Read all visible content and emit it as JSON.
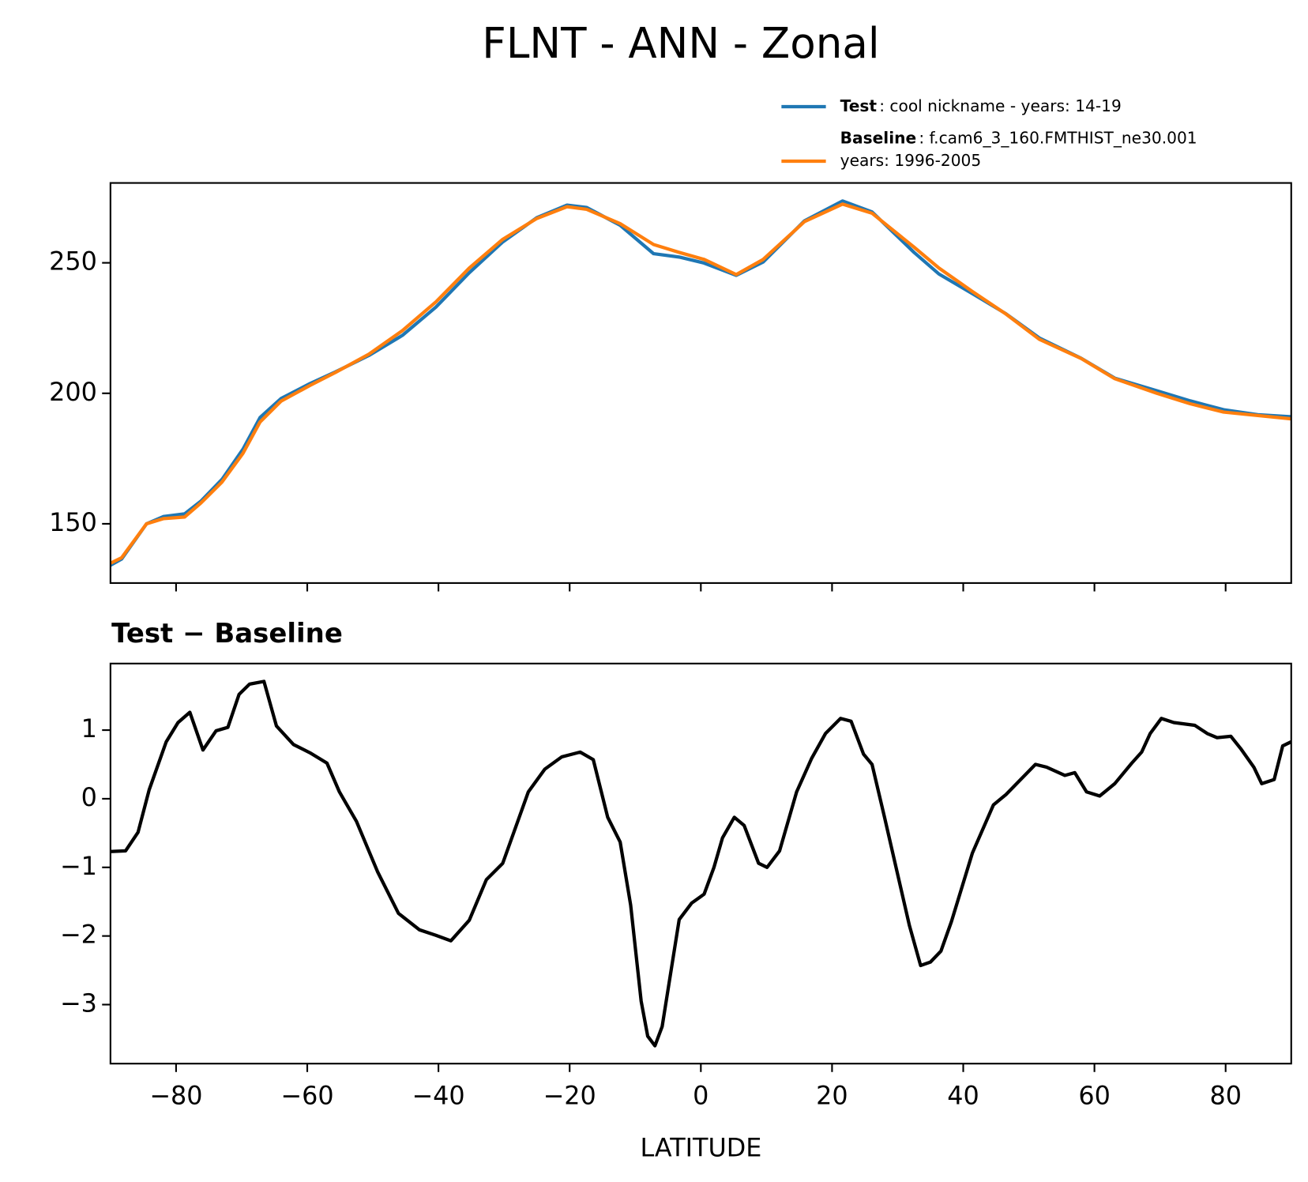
{
  "chart_data": [
    {
      "type": "line",
      "title": "FLNT - ANN - Zonal",
      "legend": "upper right",
      "x": [
        -90,
        -88.3,
        -84.5,
        -81.9,
        -78.7,
        -76.2,
        -73,
        -69.8,
        -67.2,
        -64,
        -59.6,
        -55.7,
        -50.6,
        -45.5,
        -40.4,
        -35.3,
        -30.2,
        -25,
        -20.4,
        -17.4,
        -12.3,
        -7.2,
        -3.3,
        0.5,
        5.4,
        9.5,
        15.8,
        21.6,
        26.1,
        32.5,
        36.3,
        41.4,
        46.5,
        51.6,
        58,
        63.1,
        69.5,
        74.6,
        79.7,
        84.9,
        90
      ],
      "series": [
        {
          "name": "Test",
          "detail": [
            ": cool nickname - years: 14-19"
          ],
          "color": "#1f77b4",
          "values": [
            134.1,
            136.5,
            150,
            152.8,
            153.8,
            158.7,
            167,
            178.6,
            190.7,
            198,
            203.7,
            208.2,
            214.5,
            222.2,
            233,
            246.2,
            258,
            267.3,
            272.1,
            271.2,
            264.4,
            253.5,
            252.2,
            249.9,
            245.2,
            250.3,
            266.1,
            273.7,
            269.5,
            254,
            245.7,
            238.2,
            230.5,
            221.2,
            213.4,
            205.8,
            201,
            197.1,
            193.7,
            191.8,
            191
          ]
        },
        {
          "name": "Baseline",
          "detail": [
            ": f.cam6_3_160.FMTHIST_ne30.001",
            "years: 1996-2005"
          ],
          "color": "#ff7f0e",
          "values": [
            134.9,
            137,
            150,
            152,
            152.6,
            158,
            166,
            177,
            189,
            197,
            203,
            208,
            215,
            224,
            235,
            248,
            259,
            267,
            271.5,
            270.5,
            265,
            257,
            254,
            251.3,
            245.5,
            251.3,
            265.8,
            272.5,
            269,
            256,
            248,
            239,
            230.4,
            220.7,
            213.3,
            205.6,
            200,
            196,
            192.8,
            191.5,
            190.2
          ]
        }
      ],
      "xlim": [
        -90,
        90
      ],
      "xticks": [
        -80,
        -60,
        -40,
        -20,
        0,
        20,
        40,
        60,
        80
      ],
      "ylim": [
        127.3,
        280.6
      ],
      "yticks": [
        150,
        200,
        250
      ]
    },
    {
      "type": "line",
      "title": "Test − Baseline",
      "xlabel": "LATITUDE",
      "x": [
        -90,
        -87.7,
        -85.8,
        -84.1,
        -81.5,
        -79.7,
        -77.9,
        -75.9,
        -73.9,
        -72.1,
        -70.4,
        -68.8,
        -66.6,
        -64.7,
        -62.1,
        -59.6,
        -57,
        -55.1,
        -52.5,
        -49.3,
        -46.1,
        -42.9,
        -40.4,
        -38.1,
        -35.3,
        -32.7,
        -30.2,
        -26.3,
        -23.8,
        -21.2,
        -18.4,
        -16.4,
        -14.2,
        -12.3,
        -10.7,
        -9.1,
        -8.1,
        -7,
        -5.9,
        -3.3,
        -1.4,
        0.5,
        2,
        3.3,
        5.1,
        6.6,
        8.8,
        10.1,
        12,
        14.6,
        16.9,
        19,
        21.3,
        22.9,
        24.8,
        26.1,
        28,
        29.9,
        31.8,
        33.5,
        35,
        36.6,
        38.2,
        41.4,
        44.6,
        46.5,
        51,
        52.7,
        55.5,
        57,
        58.8,
        60.8,
        63.1,
        65.7,
        67.2,
        68.5,
        70.2,
        72.1,
        75.3,
        77.2,
        78.7,
        80.8,
        82.3,
        84.3,
        85.5,
        87.4,
        88.7,
        90
      ],
      "series": [
        {
          "color": "#000000",
          "values": [
            -0.77,
            -0.76,
            -0.49,
            0.13,
            0.83,
            1.11,
            1.26,
            0.71,
            0.99,
            1.04,
            1.52,
            1.67,
            1.71,
            1.06,
            0.79,
            0.67,
            0.52,
            0.1,
            -0.33,
            -1.06,
            -1.67,
            -1.91,
            -1.99,
            -2.07,
            -1.77,
            -1.18,
            -0.94,
            0.1,
            0.43,
            0.61,
            0.68,
            0.57,
            -0.27,
            -0.63,
            -1.55,
            -2.95,
            -3.46,
            -3.6,
            -3.32,
            -1.76,
            -1.52,
            -1.39,
            -1.0,
            -0.57,
            -0.27,
            -0.39,
            -0.94,
            -1.0,
            -0.76,
            0.1,
            0.59,
            0.95,
            1.17,
            1.13,
            0.65,
            0.5,
            -0.27,
            -1.06,
            -1.85,
            -2.43,
            -2.38,
            -2.22,
            -1.79,
            -0.79,
            -0.09,
            0.06,
            0.5,
            0.46,
            0.34,
            0.38,
            0.1,
            0.04,
            0.22,
            0.52,
            0.68,
            0.95,
            1.17,
            1.11,
            1.07,
            0.95,
            0.89,
            0.91,
            0.73,
            0.46,
            0.22,
            0.28,
            0.77,
            0.83
          ]
        }
      ],
      "xlim": [
        -90,
        90
      ],
      "xticks": [
        {
          "value": -80,
          "label": "−80"
        },
        {
          "value": -60,
          "label": "−60"
        },
        {
          "value": -40,
          "label": "−40"
        },
        {
          "value": -20,
          "label": "−20"
        },
        0,
        20,
        40,
        60,
        80
      ],
      "ylim": [
        -3.86,
        1.97
      ],
      "yticks": [
        {
          "value": -3,
          "label": "−3"
        },
        {
          "value": -2,
          "label": "−2"
        },
        {
          "value": -1,
          "label": "−1"
        },
        0,
        1
      ]
    }
  ]
}
